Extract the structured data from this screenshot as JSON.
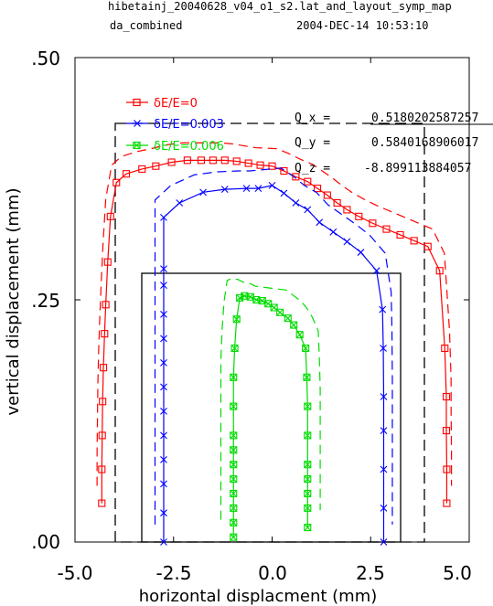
{
  "header": {
    "file": "hibetainj_20040628_v04_o1_s2.lat_and_layout_symp_map",
    "subtitle": "da_combined",
    "timestamp": "2004-DEC-14  10:53:10"
  },
  "tunes": [
    {
      "label": "Q_x  =",
      "value": "0.5180202587257"
    },
    {
      "label": "Q_y  =",
      "value": "0.5840168906017"
    },
    {
      "label": "Q_z  =",
      "value": "-8.899113884057"
    }
  ],
  "colors": {
    "axes": "#000000",
    "series_0": "#ff0000",
    "series_1": "#0000ff",
    "series_2": "#00dd00",
    "aperture": "#000000"
  },
  "chart_data": {
    "type": "line",
    "xlabel": "horizontal displacment (mm)",
    "ylabel": "vertical displacement (mm)",
    "xlim": [
      -5.0,
      5.0
    ],
    "ylim": [
      0.0,
      0.5
    ],
    "x_ticks": [
      "-5.0",
      "-2.5",
      "0.0",
      "2.5",
      "5.0"
    ],
    "y_ticks": [
      ".00",
      ".25",
      ".50"
    ],
    "grid": false,
    "legend_position": "top-left",
    "series": [
      {
        "name": "δE/E=0",
        "color": "#ff0000",
        "marker": "square",
        "x": [
          -4.32,
          -4.32,
          -4.31,
          -4.3,
          -4.28,
          -4.25,
          -4.22,
          -4.17,
          -4.1,
          -3.95,
          -3.7,
          -3.3,
          -2.95,
          -2.55,
          -2.15,
          -1.8,
          -1.5,
          -1.2,
          -0.9,
          -0.6,
          -0.3,
          0.0,
          0.3,
          0.6,
          0.9,
          1.15,
          1.4,
          1.65,
          1.9,
          2.2,
          2.55,
          2.9,
          3.25,
          3.6,
          3.95,
          4.25,
          4.38,
          4.42,
          4.42,
          4.43,
          4.43
        ],
        "y": [
          0.04,
          0.075,
          0.11,
          0.145,
          0.18,
          0.215,
          0.245,
          0.289,
          0.336,
          0.371,
          0.38,
          0.385,
          0.388,
          0.392,
          0.394,
          0.394,
          0.394,
          0.394,
          0.393,
          0.391,
          0.389,
          0.388,
          0.383,
          0.377,
          0.372,
          0.365,
          0.358,
          0.35,
          0.343,
          0.336,
          0.329,
          0.323,
          0.317,
          0.311,
          0.305,
          0.28,
          0.2,
          0.15,
          0.115,
          0.075,
          0.04
        ]
      },
      {
        "name": "δE/E=0.003",
        "color": "#0000ff",
        "marker": "x",
        "x": [
          -2.75,
          -2.75,
          -2.75,
          -2.75,
          -2.75,
          -2.75,
          -2.75,
          -2.75,
          -2.75,
          -2.75,
          -2.75,
          -2.75,
          -2.75,
          -2.35,
          -1.75,
          -1.2,
          -0.65,
          -0.35,
          0.0,
          0.3,
          0.6,
          0.9,
          1.2,
          1.55,
          1.9,
          2.25,
          2.65,
          2.8,
          2.82,
          2.83,
          2.83,
          2.83,
          2.83,
          2.83
        ],
        "y": [
          0.0,
          0.03,
          0.06,
          0.085,
          0.11,
          0.135,
          0.16,
          0.185,
          0.21,
          0.235,
          0.265,
          0.282,
          0.335,
          0.35,
          0.361,
          0.364,
          0.365,
          0.365,
          0.368,
          0.36,
          0.35,
          0.343,
          0.33,
          0.32,
          0.31,
          0.299,
          0.28,
          0.24,
          0.2,
          0.15,
          0.115,
          0.075,
          0.035,
          0.0
        ]
      },
      {
        "name": "δE/E=0.006",
        "color": "#00dd00",
        "marker": "boxed-x",
        "x": [
          -0.98,
          -0.98,
          -0.98,
          -0.98,
          -0.98,
          -0.98,
          -0.98,
          -0.98,
          -0.98,
          -0.98,
          -0.95,
          -0.9,
          -0.82,
          -0.7,
          -0.55,
          -0.4,
          -0.25,
          -0.1,
          0.05,
          0.2,
          0.4,
          0.55,
          0.7,
          0.85,
          0.88,
          0.9,
          0.9,
          0.9,
          0.9,
          0.9,
          0.9,
          0.9
        ],
        "y": [
          0.005,
          0.02,
          0.035,
          0.05,
          0.065,
          0.08,
          0.095,
          0.11,
          0.14,
          0.17,
          0.2,
          0.23,
          0.252,
          0.254,
          0.253,
          0.25,
          0.249,
          0.246,
          0.242,
          0.237,
          0.231,
          0.224,
          0.214,
          0.2,
          0.17,
          0.14,
          0.11,
          0.08,
          0.065,
          0.05,
          0.035,
          0.015
        ]
      }
    ]
  }
}
